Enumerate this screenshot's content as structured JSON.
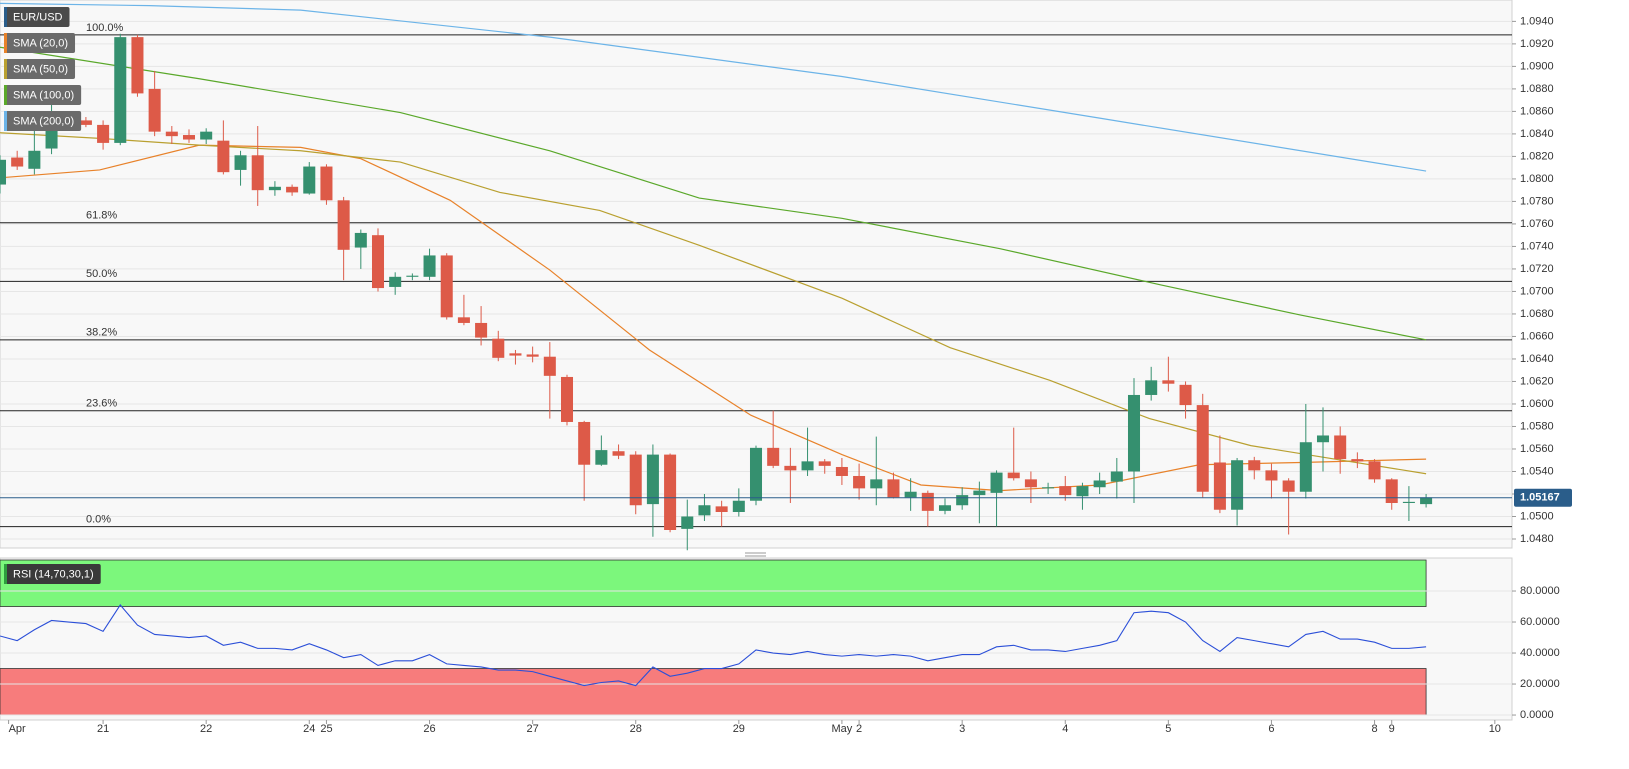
{
  "chart_data": [
    {
      "type": "candlestick",
      "symbol": "EUR/USD",
      "x": [
        0,
        1,
        2,
        3,
        4,
        5,
        6,
        7,
        8,
        9,
        10,
        11,
        12,
        13,
        14,
        15,
        16,
        17,
        18,
        19,
        20,
        21,
        22,
        23,
        24,
        25,
        26,
        27,
        28,
        29,
        30,
        31,
        32,
        33,
        34,
        35,
        36,
        37,
        38,
        39,
        40,
        41,
        42,
        43,
        44,
        45,
        46,
        47,
        48,
        49,
        50,
        51,
        52,
        53,
        54,
        55,
        56,
        57,
        58,
        59,
        60,
        61,
        62,
        63,
        64,
        65,
        66,
        67,
        68,
        69,
        70,
        71,
        72,
        73,
        74,
        75,
        76,
        77,
        78,
        79,
        80,
        81,
        82,
        83
      ],
      "open": [
        1.0795,
        1.0819,
        1.0809,
        1.0827,
        1.0853,
        1.0852,
        1.0848,
        1.0832,
        1.0926,
        1.088,
        1.0842,
        1.0839,
        1.0835,
        1.0834,
        1.0808,
        1.0821,
        1.079,
        1.0793,
        1.0787,
        1.0811,
        1.0781,
        1.0739,
        1.075,
        1.0704,
        1.0713,
        1.0713,
        1.0732,
        1.0677,
        1.0672,
        1.0658,
        1.0645,
        1.0644,
        1.0642,
        1.0624,
        1.0584,
        1.0546,
        1.0558,
        1.0555,
        1.0511,
        1.0555,
        1.0489,
        1.0501,
        1.0509,
        1.0504,
        1.0514,
        1.0561,
        1.0545,
        1.0541,
        1.0549,
        1.0544,
        1.0536,
        1.0525,
        1.0533,
        1.0517,
        1.0521,
        1.0505,
        1.051,
        1.0519,
        1.0521,
        1.0539,
        1.0533,
        1.0525,
        1.0527,
        1.0518,
        1.0526,
        1.0531,
        1.054,
        1.0608,
        1.0621,
        1.0617,
        1.0599,
        1.0548,
        1.0506,
        1.055,
        1.0541,
        1.0532,
        1.0522,
        1.0566,
        1.0572,
        1.0551,
        1.0549,
        1.0533,
        1.0512,
        1.0511
      ],
      "high": [
        1.0821,
        1.0825,
        1.0845,
        1.087,
        1.0858,
        1.0855,
        1.0852,
        1.0929,
        1.0928,
        1.0896,
        1.0847,
        1.0844,
        1.0845,
        1.0852,
        1.0825,
        1.0847,
        1.0798,
        1.0795,
        1.0815,
        1.0813,
        1.0784,
        1.0755,
        1.0756,
        1.0717,
        1.0716,
        1.0738,
        1.0734,
        1.0697,
        1.0687,
        1.0665,
        1.0648,
        1.0651,
        1.0655,
        1.0626,
        1.0585,
        1.0572,
        1.0564,
        1.0558,
        1.0564,
        1.0556,
        1.0515,
        1.052,
        1.0514,
        1.0525,
        1.0563,
        1.0594,
        1.0561,
        1.0579,
        1.0551,
        1.0552,
        1.0547,
        1.0571,
        1.0539,
        1.0534,
        1.0523,
        1.0516,
        1.0526,
        1.0531,
        1.0541,
        1.0579,
        1.054,
        1.053,
        1.0536,
        1.053,
        1.0539,
        1.0552,
        1.0623,
        1.0633,
        1.0642,
        1.062,
        1.0609,
        1.0572,
        1.0552,
        1.0553,
        1.0547,
        1.0534,
        1.06,
        1.0597,
        1.058,
        1.0557,
        1.0551,
        1.0534,
        1.0527,
        1.052
      ],
      "low": [
        1.0787,
        1.0808,
        1.0804,
        1.0822,
        1.0845,
        1.0846,
        1.0826,
        1.083,
        1.0873,
        1.0838,
        1.0831,
        1.0832,
        1.0831,
        1.0804,
        1.0794,
        1.0776,
        1.0785,
        1.0785,
        1.0786,
        1.0777,
        1.071,
        1.072,
        1.07,
        1.0697,
        1.071,
        1.071,
        1.0675,
        1.067,
        1.0652,
        1.0638,
        1.0635,
        1.0637,
        1.0587,
        1.0581,
        1.0514,
        1.0545,
        1.0551,
        1.0502,
        1.0482,
        1.0486,
        1.047,
        1.0496,
        1.0491,
        1.05,
        1.051,
        1.0543,
        1.0512,
        1.0536,
        1.0538,
        1.0528,
        1.0515,
        1.051,
        1.0516,
        1.0505,
        1.0491,
        1.0502,
        1.0506,
        1.0494,
        1.0491,
        1.0532,
        1.0512,
        1.052,
        1.0514,
        1.0506,
        1.052,
        1.0516,
        1.0512,
        1.0603,
        1.0611,
        1.0587,
        1.0517,
        1.0503,
        1.0492,
        1.0533,
        1.0516,
        1.0484,
        1.0516,
        1.054,
        1.0538,
        1.0543,
        1.053,
        1.0506,
        1.0496,
        1.0508
      ],
      "close": [
        1.0817,
        1.0811,
        1.0825,
        1.0854,
        1.085,
        1.0848,
        1.0832,
        1.0926,
        1.0876,
        1.0842,
        1.0838,
        1.0835,
        1.0842,
        1.0806,
        1.0821,
        1.079,
        1.0793,
        1.0788,
        1.0811,
        1.0781,
        1.0737,
        1.0752,
        1.0703,
        1.0713,
        1.0714,
        1.0732,
        1.0677,
        1.0672,
        1.0659,
        1.0641,
        1.0643,
        1.0642,
        1.0625,
        1.0584,
        1.0546,
        1.0559,
        1.0554,
        1.051,
        1.0555,
        1.0488,
        1.05,
        1.051,
        1.0504,
        1.0514,
        1.0561,
        1.0545,
        1.0541,
        1.0549,
        1.0545,
        1.0536,
        1.0525,
        1.0533,
        1.0517,
        1.0522,
        1.0505,
        1.051,
        1.0519,
        1.0523,
        1.0539,
        1.0534,
        1.0526,
        1.0526,
        1.0519,
        1.0527,
        1.0532,
        1.054,
        1.0608,
        1.0621,
        1.0618,
        1.0599,
        1.0522,
        1.0506,
        1.055,
        1.0541,
        1.0532,
        1.0522,
        1.0566,
        1.0572,
        1.0551,
        1.0549,
        1.0533,
        1.0512,
        1.0513,
        1.0517
      ],
      "up_color": "#35906f",
      "down_color": "#dd5a48",
      "xlim": [
        0,
        88
      ],
      "ylim": [
        1.0472,
        1.0959
      ],
      "yticks": [
        {
          "value": 1.048,
          "label": "1.0480"
        },
        {
          "value": 1.05,
          "label": "1.0500"
        },
        {
          "value": 1.052,
          "label": "1.0520"
        },
        {
          "value": 1.054,
          "label": "1.0540"
        },
        {
          "value": 1.056,
          "label": "1.0560"
        },
        {
          "value": 1.058,
          "label": "1.0580"
        },
        {
          "value": 1.06,
          "label": "1.0600"
        },
        {
          "value": 1.062,
          "label": "1.0620"
        },
        {
          "value": 1.064,
          "label": "1.0640"
        },
        {
          "value": 1.066,
          "label": "1.0660"
        },
        {
          "value": 1.068,
          "label": "1.0680"
        },
        {
          "value": 1.07,
          "label": "1.0700"
        },
        {
          "value": 1.072,
          "label": "1.0720"
        },
        {
          "value": 1.074,
          "label": "1.0740"
        },
        {
          "value": 1.076,
          "label": "1.0760"
        },
        {
          "value": 1.078,
          "label": "1.0780"
        },
        {
          "value": 1.08,
          "label": "1.0800"
        },
        {
          "value": 1.082,
          "label": "1.0820"
        },
        {
          "value": 1.084,
          "label": "1.0840"
        },
        {
          "value": 1.086,
          "label": "1.0860"
        },
        {
          "value": 1.088,
          "label": "1.0880"
        },
        {
          "value": 1.09,
          "label": "1.0900"
        },
        {
          "value": 1.092,
          "label": "1.0920"
        },
        {
          "value": 1.094,
          "label": "1.0940"
        }
      ],
      "grid": true,
      "lines": [
        {
          "name": "SMA (20,0)",
          "color": "#e8822a",
          "x": [
            0,
            5.8,
            11.6,
            17.5,
            21,
            26.2,
            32,
            37.8,
            43.7,
            49,
            53.6,
            58.2,
            64,
            69.8,
            75.7,
            83
          ],
          "values": [
            1.0801,
            1.0808,
            1.083,
            1.0828,
            1.0818,
            1.0781,
            1.0719,
            1.0648,
            1.059,
            1.0555,
            1.0528,
            1.0523,
            1.0528,
            1.0546,
            1.0548,
            1.0551
          ]
        },
        {
          "name": "SMA (50,0)",
          "color": "#b9a030",
          "x": [
            0,
            5.8,
            11.6,
            17.5,
            23.3,
            29.1,
            34.9,
            40.7,
            49,
            55.3,
            61.1,
            66.9,
            72.8,
            83
          ],
          "values": [
            1.0841,
            1.0836,
            1.083,
            1.0825,
            1.0815,
            1.0788,
            1.0772,
            1.0741,
            1.0694,
            1.065,
            1.0621,
            1.0587,
            1.0563,
            1.0538
          ]
        },
        {
          "name": "SMA (100,0)",
          "color": "#5aa82a",
          "x": [
            0,
            11.6,
            23.3,
            32,
            40.7,
            49,
            58.2,
            67.5,
            75.7,
            83
          ],
          "values": [
            1.0917,
            1.0889,
            1.0859,
            1.0825,
            1.0783,
            1.0765,
            1.0738,
            1.0706,
            1.0679,
            1.0657
          ]
        },
        {
          "name": "SMA (200,0)",
          "color": "#6cb4e8",
          "x": [
            0,
            8.7,
            17.5,
            32,
            49,
            64,
            83
          ],
          "values": [
            1.0956,
            1.0954,
            1.095,
            1.0926,
            1.0891,
            1.0854,
            1.0807
          ]
        }
      ],
      "fib_levels": [
        {
          "label": "100.0%",
          "value": 1.0928
        },
        {
          "label": "61.8%",
          "value": 1.0761
        },
        {
          "label": "50.0%",
          "value": 1.0709
        },
        {
          "label": "38.2%",
          "value": 1.0657
        },
        {
          "label": "23.6%",
          "value": 1.0594
        },
        {
          "label": "0.0%",
          "value": 1.0491
        }
      ],
      "last_price": 1.05167,
      "last_price_color": "#2a5d8a"
    },
    {
      "type": "line",
      "title": "RSI (14,70,30,1)",
      "color": "#2b4fd8",
      "x": [
        0,
        1,
        2,
        3,
        4,
        5,
        6,
        7,
        8,
        9,
        10,
        11,
        12,
        13,
        14,
        15,
        16,
        17,
        18,
        19,
        20,
        21,
        22,
        23,
        24,
        25,
        26,
        27,
        28,
        29,
        30,
        31,
        32,
        33,
        34,
        35,
        36,
        37,
        38,
        39,
        40,
        41,
        42,
        43,
        44,
        45,
        46,
        47,
        48,
        49,
        50,
        51,
        52,
        53,
        54,
        55,
        56,
        57,
        58,
        59,
        60,
        61,
        62,
        63,
        64,
        65,
        66,
        67,
        68,
        69,
        70,
        71,
        72,
        73,
        74,
        75,
        76,
        77,
        78,
        79,
        80,
        81,
        82,
        83
      ],
      "values": [
        51,
        48,
        55,
        61,
        60,
        59,
        54,
        71,
        58,
        52,
        51,
        50,
        51,
        45,
        47,
        43,
        43,
        42,
        46,
        42,
        37,
        39,
        32,
        35,
        35,
        39,
        33,
        32,
        31,
        29,
        29,
        28,
        25,
        22,
        19,
        21,
        22,
        19,
        31,
        25,
        27,
        30,
        30,
        33,
        42,
        40,
        39,
        41,
        39,
        38,
        39,
        38,
        39,
        38,
        35,
        37,
        39,
        39,
        44,
        45,
        42,
        42,
        41,
        43,
        45,
        48,
        66,
        67,
        66,
        60,
        48,
        41,
        50,
        48,
        46,
        44,
        52,
        54,
        49,
        49,
        47,
        43,
        43,
        44
      ],
      "zones": [
        {
          "range": [
            70,
            100
          ],
          "color": "#7cf77c"
        },
        {
          "range": [
            0,
            30
          ],
          "color": "#f77c7c"
        }
      ],
      "xlim": [
        0,
        88
      ],
      "ylim": [
        -3.2,
        101.3
      ],
      "yticks": [
        {
          "value": 0,
          "label": "0.0000"
        },
        {
          "value": 20,
          "label": "20.0000"
        },
        {
          "value": 40,
          "label": "40.0000"
        },
        {
          "value": 60,
          "label": "60.0000"
        },
        {
          "value": 80,
          "label": "80.0000"
        }
      ],
      "xticks": [
        {
          "value": 0.5,
          "label": "Apr"
        },
        {
          "value": 6,
          "label": "21"
        },
        {
          "value": 12,
          "label": "22"
        },
        {
          "value": 18,
          "label": "24"
        },
        {
          "value": 19,
          "label": "25"
        },
        {
          "value": 25,
          "label": "26"
        },
        {
          "value": 31,
          "label": "27"
        },
        {
          "value": 37,
          "label": "28"
        },
        {
          "value": 43,
          "label": "29"
        },
        {
          "value": 49,
          "label": "May"
        },
        {
          "value": 50,
          "label": "2"
        },
        {
          "value": 56,
          "label": "3"
        },
        {
          "value": 62,
          "label": "4"
        },
        {
          "value": 68,
          "label": "5"
        },
        {
          "value": 74,
          "label": "6"
        },
        {
          "value": 80,
          "label": "8"
        },
        {
          "value": 81,
          "label": "9"
        },
        {
          "value": 87,
          "label": "10"
        }
      ]
    }
  ]
}
